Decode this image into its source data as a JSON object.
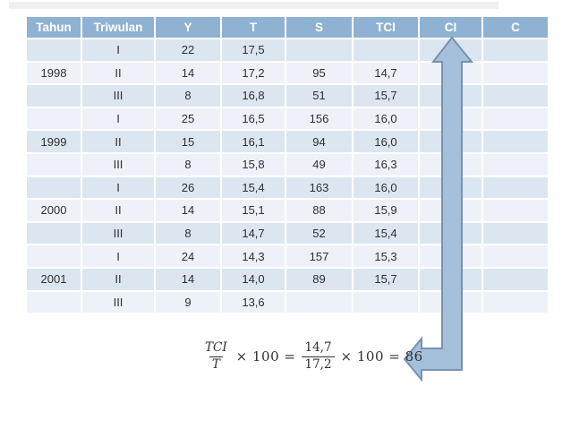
{
  "table": {
    "columns": [
      "Tahun",
      "Triwulan",
      "Y",
      "T",
      "S",
      "TCI",
      "CI",
      "C"
    ],
    "rows": [
      [
        "",
        "I",
        "22",
        "17,5",
        "",
        "",
        "",
        ""
      ],
      [
        "1998",
        "II",
        "14",
        "17,2",
        "95",
        "14,7",
        "",
        ""
      ],
      [
        "",
        "III",
        "8",
        "16,8",
        "51",
        "15,7",
        "",
        ""
      ],
      [
        "",
        "I",
        "25",
        "16,5",
        "156",
        "16,0",
        "",
        ""
      ],
      [
        "1999",
        "II",
        "15",
        "16,1",
        "94",
        "16,0",
        "",
        ""
      ],
      [
        "",
        "III",
        "8",
        "15,8",
        "49",
        "16,3",
        "",
        ""
      ],
      [
        "",
        "I",
        "26",
        "15,4",
        "163",
        "16,0",
        "",
        ""
      ],
      [
        "2000",
        "II",
        "14",
        "15,1",
        "88",
        "15,9",
        "",
        ""
      ],
      [
        "",
        "III",
        "8",
        "14,7",
        "52",
        "15,4",
        "",
        ""
      ],
      [
        "",
        "I",
        "24",
        "14,3",
        "157",
        "15,3",
        "",
        ""
      ],
      [
        "2001",
        "II",
        "14",
        "14,0",
        "89",
        "15,7",
        "",
        ""
      ],
      [
        "",
        "III",
        "9",
        "13,6",
        "",
        "",
        "",
        ""
      ]
    ]
  },
  "formula": {
    "fraction1": {
      "numerator": "TCI",
      "denominator": "T"
    },
    "operator1": "× 100 =",
    "fraction2": {
      "numerator": "14,7",
      "denominator": "17,2"
    },
    "operator2": "× 100 = 86"
  },
  "theme": {
    "header_bg": "#8fb2d2",
    "header_text": "#ffffff",
    "row_odd": "#dce6f1",
    "row_even": "#eef2f8",
    "cell_text": "#2f2f2f",
    "arrow_fill": "#a4c0db",
    "arrow_stroke": "#7792b0"
  }
}
